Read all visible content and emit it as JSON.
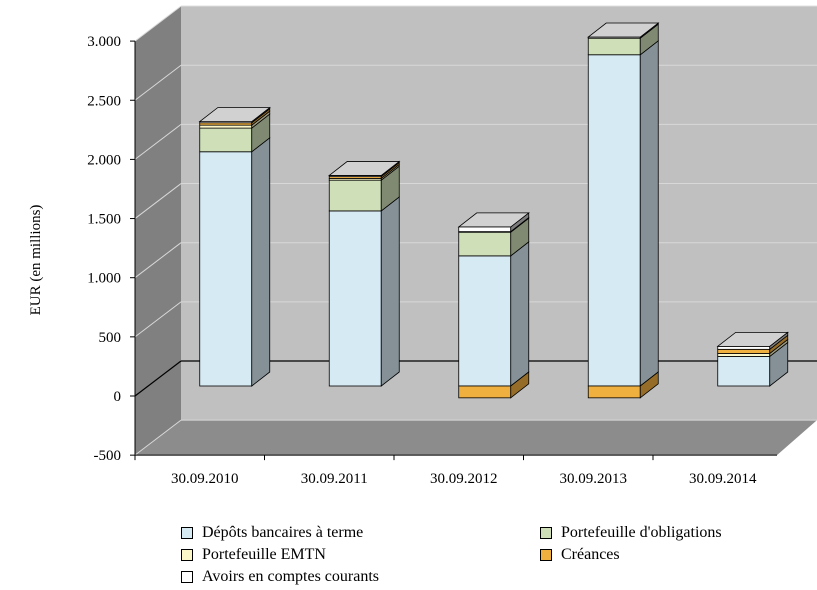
{
  "chart_data": {
    "type": "bar",
    "stacked": true,
    "three_d": true,
    "ylabel": "EUR (en millions)",
    "xlabel": "",
    "ylim": [
      -500,
      3000
    ],
    "yticks": [
      3000,
      2500,
      2000,
      1500,
      1000,
      500,
      0,
      -500
    ],
    "ytick_labels": [
      "3.000",
      "2.500",
      "2.000",
      "1.500",
      "1.000",
      "500",
      "0",
      "-500"
    ],
    "categories": [
      "30.09.2010",
      "30.09.2011",
      "30.09.2012",
      "30.09.2013",
      "30.09.2014"
    ],
    "series": [
      {
        "name": "Dépôts bancaires à terme",
        "color": "#d6eaf4",
        "values": [
          1980,
          1480,
          1100,
          2800,
          250
        ]
      },
      {
        "name": "Portefeuille d'obligations",
        "color": "#cfdfb8",
        "values": [
          200,
          260,
          200,
          140,
          0
        ]
      },
      {
        "name": "Portefeuille EMTN",
        "color": "#fbf7c8",
        "values": [
          25,
          15,
          5,
          0,
          25
        ]
      },
      {
        "name": "Créances",
        "color": "#f0b040",
        "values": [
          20,
          15,
          100,
          100,
          35
        ]
      },
      {
        "name": "Avoirs en comptes courants",
        "color": "#ffffff",
        "values": [
          10,
          10,
          40,
          10,
          25
        ]
      }
    ],
    "grid": true,
    "legend_position": "bottom"
  },
  "legend": {
    "items": [
      {
        "label": "Dépôts bancaires à terme",
        "color": "#d6eaf4"
      },
      {
        "label": "Portefeuille d'obligations",
        "color": "#cfdfb8"
      },
      {
        "label": "Portefeuille EMTN",
        "color": "#fbf7c8"
      },
      {
        "label": "Créances",
        "color": "#f0b040"
      },
      {
        "label": "Avoirs en comptes courants",
        "color": "#ffffff"
      }
    ]
  },
  "colors": {
    "back_wall": "#c0c0c0",
    "side_wall": "#808080",
    "floor": "#8c8c8c"
  }
}
